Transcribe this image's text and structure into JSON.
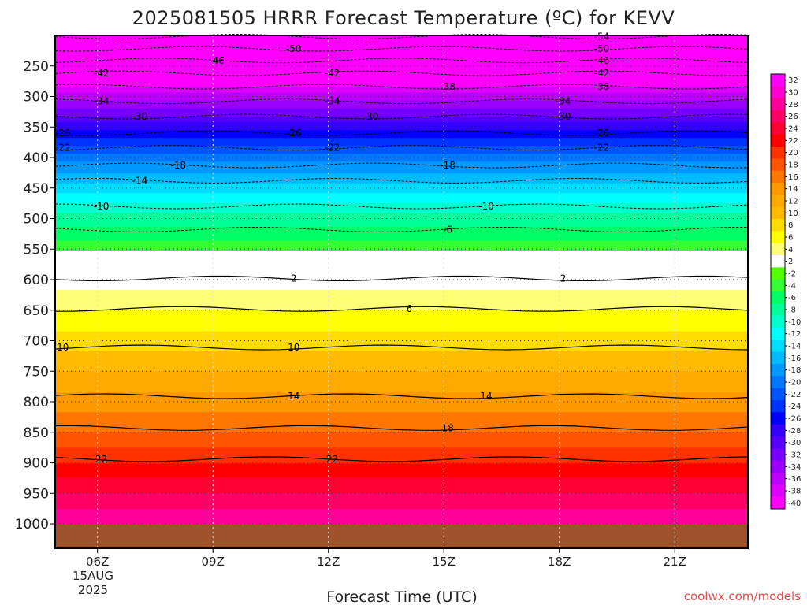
{
  "chart_data": {
    "type": "heatmap",
    "title": "2025081505 HRRR Forecast Temperature (ºC) for KEVV",
    "xlabel": "Forecast Time (UTC)",
    "credit": "coolwx.com/models",
    "x_ticks": [
      "06Z",
      "09Z",
      "12Z",
      "15Z",
      "18Z",
      "21Z"
    ],
    "x_date_line1": "15AUG",
    "x_date_line2": "2025",
    "x_range_hours": [
      4.9,
      22.9
    ],
    "pressure_ticks": [
      250,
      300,
      350,
      400,
      450,
      500,
      550,
      600,
      650,
      700,
      750,
      800,
      850,
      900,
      950,
      1000
    ],
    "pressure_range": [
      200,
      1040
    ],
    "ground_pressure": 1000,
    "ground_color": "#a0522d",
    "colorbar_levels": [
      32,
      30,
      28,
      26,
      24,
      22,
      20,
      18,
      16,
      14,
      12,
      10,
      8,
      6,
      4,
      2,
      -2,
      -4,
      -6,
      -8,
      -10,
      -12,
      -14,
      -16,
      -18,
      -20,
      -22,
      -24,
      -26,
      -28,
      -30,
      -32,
      -34,
      -36,
      -38,
      -40
    ],
    "colorbar_colors": [
      "#ff00ff",
      "#ff00d0",
      "#ff0099",
      "#ff0066",
      "#ff0033",
      "#ff0000",
      "#ff3300",
      "#ff5500",
      "#ff7700",
      "#ff9900",
      "#ffaa00",
      "#ffbb00",
      "#ffdd00",
      "#ffff00",
      "#ffff77",
      "#ffffff",
      "#55ff00",
      "#33ff33",
      "#00ff66",
      "#00ff99",
      "#00ffcc",
      "#00ffff",
      "#00ddff",
      "#00bbff",
      "#0099ff",
      "#0077ff",
      "#0055ff",
      "#0033ff",
      "#0000ff",
      "#3300ff",
      "#5500ff",
      "#7700ff",
      "#9900ff",
      "#bb00ff",
      "#dd00ff",
      "#ff00ff"
    ],
    "isotherm_labels": [
      {
        "value": -54,
        "pressure": 202,
        "hours": [
          19.1
        ]
      },
      {
        "value": -50,
        "pressure": 222,
        "hours": [
          11.1,
          19.1
        ]
      },
      {
        "value": -46,
        "pressure": 241,
        "hours": [
          9.1,
          19.1
        ]
      },
      {
        "value": -42,
        "pressure": 262,
        "hours": [
          6.1,
          12.1,
          19.1
        ]
      },
      {
        "value": -38,
        "pressure": 284,
        "hours": [
          15.1,
          19.1
        ]
      },
      {
        "value": -34,
        "pressure": 308,
        "hours": [
          6.1,
          12.1,
          18.1
        ]
      },
      {
        "value": -30,
        "pressure": 333,
        "hours": [
          7.1,
          13.1,
          18.1
        ]
      },
      {
        "value": -26,
        "pressure": 360,
        "hours": [
          5.1,
          11.1,
          19.1
        ]
      },
      {
        "value": -22,
        "pressure": 384,
        "hours": [
          5.1,
          12.1,
          19.1
        ]
      },
      {
        "value": -18,
        "pressure": 413,
        "hours": [
          8.1,
          15.1
        ]
      },
      {
        "value": -14,
        "pressure": 438,
        "hours": [
          7.1
        ]
      },
      {
        "value": -10,
        "pressure": 480,
        "hours": [
          6.1,
          16.1
        ]
      },
      {
        "value": -6,
        "pressure": 518,
        "hours": [
          15.1
        ]
      },
      {
        "value": 2,
        "pressure": 598,
        "hours": [
          11.1,
          18.1
        ]
      },
      {
        "value": 6,
        "pressure": 648,
        "hours": [
          14.1
        ]
      },
      {
        "value": 10,
        "pressure": 711,
        "hours": [
          5.1,
          11.1
        ]
      },
      {
        "value": 14,
        "pressure": 791,
        "hours": [
          11.1,
          16.1
        ]
      },
      {
        "value": 18,
        "pressure": 843,
        "hours": [
          15.1
        ]
      },
      {
        "value": 22,
        "pressure": 894,
        "hours": [
          6.1,
          12.1
        ]
      }
    ],
    "temperature_profile": [
      {
        "pressure": 200,
        "temp": -55
      },
      {
        "pressure": 250,
        "temp": -44
      },
      {
        "pressure": 300,
        "temp": -35
      },
      {
        "pressure": 350,
        "temp": -27
      },
      {
        "pressure": 400,
        "temp": -19
      },
      {
        "pressure": 450,
        "temp": -13
      },
      {
        "pressure": 500,
        "temp": -7
      },
      {
        "pressure": 550,
        "temp": -3
      },
      {
        "pressure": 560,
        "temp": 0
      },
      {
        "pressure": 600,
        "temp": 3
      },
      {
        "pressure": 650,
        "temp": 6
      },
      {
        "pressure": 700,
        "temp": 9
      },
      {
        "pressure": 750,
        "temp": 12
      },
      {
        "pressure": 800,
        "temp": 15
      },
      {
        "pressure": 850,
        "temp": 18
      },
      {
        "pressure": 900,
        "temp": 22
      },
      {
        "pressure": 950,
        "temp": 26
      },
      {
        "pressure": 1000,
        "temp": 30
      },
      {
        "pressure": 1040,
        "temp": 31
      }
    ]
  }
}
